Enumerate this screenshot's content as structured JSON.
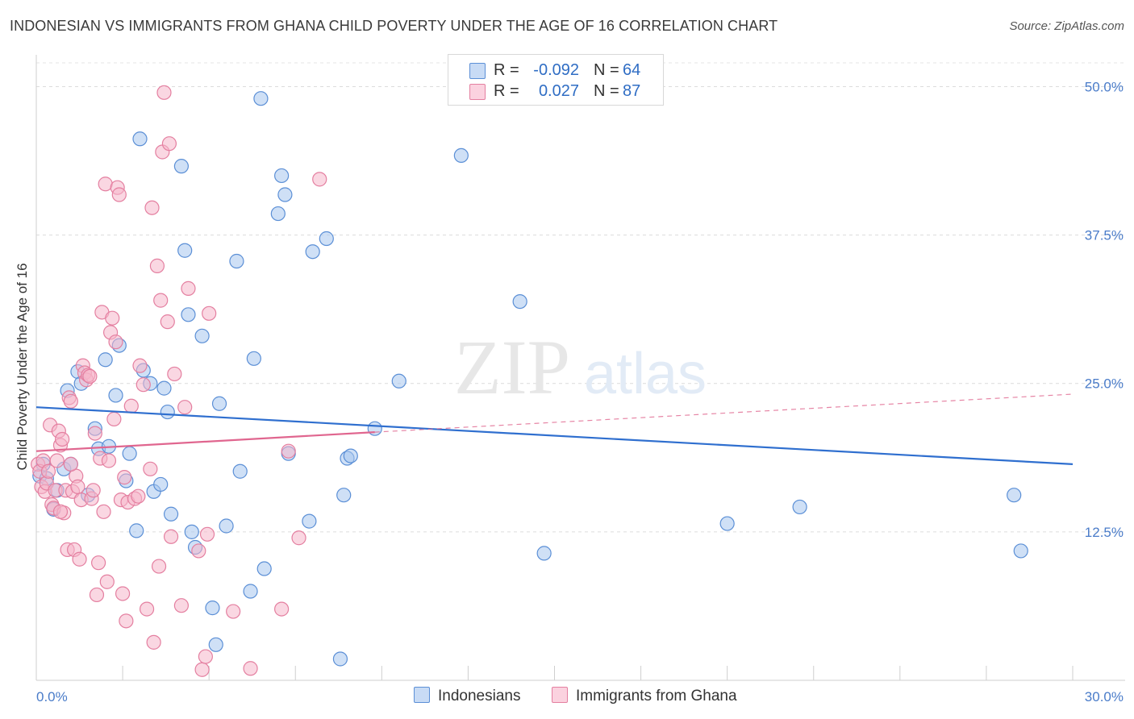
{
  "header": {
    "title": "INDONESIAN VS IMMIGRANTS FROM GHANA CHILD POVERTY UNDER THE AGE OF 16 CORRELATION CHART",
    "source": "Source: ZipAtlas.com"
  },
  "watermark": {
    "zip": "ZIP",
    "atlas": "atlas"
  },
  "legend": {
    "rows": [
      {
        "r_label": "R =",
        "r_value": "-0.092",
        "n_label": "N =",
        "n_value": "64",
        "color": "#a8c6ee"
      },
      {
        "r_label": "R =",
        "r_value": "0.027",
        "n_label": "N =",
        "n_value": "87",
        "color": "#f6b6ca"
      }
    ]
  },
  "bottom_legend": {
    "item1": "Indonesians",
    "item2": "Immigrants from Ghana"
  },
  "colors": {
    "blue_fill": "#a8c6ee",
    "blue_stroke": "#5b8fd6",
    "blue_line": "#2f6fcf",
    "pink_fill": "#f6b6ca",
    "pink_stroke": "#e47fa0",
    "pink_line": "#e0668f",
    "tick_label": "#4a7cc9"
  },
  "chart_data": {
    "type": "scatter",
    "title": "INDONESIAN VS IMMIGRANTS FROM GHANA CHILD POVERTY UNDER THE AGE OF 16 CORRELATION CHART",
    "xlabel": "",
    "ylabel": "Child Poverty Under the Age of 16",
    "xlim": [
      0,
      30
    ],
    "ylim": [
      0,
      52
    ],
    "x_tick_labels": [
      {
        "value": 0,
        "label": "0.0%"
      },
      {
        "value": 30,
        "label": "30.0%"
      }
    ],
    "y_ticks": [
      {
        "value": 12.5,
        "label": "12.5%"
      },
      {
        "value": 25.0,
        "label": "25.0%"
      },
      {
        "value": 37.5,
        "label": "37.5%"
      },
      {
        "value": 50.0,
        "label": "50.0%"
      }
    ],
    "grid": true,
    "legend_position": "top-center",
    "series": [
      {
        "name": "Indonesians",
        "r": -0.092,
        "n": 64,
        "trend": {
          "x": [
            0,
            30
          ],
          "y": [
            23.0,
            18.2
          ]
        },
        "points": [
          [
            0.1,
            17.2
          ],
          [
            0.3,
            17.0
          ],
          [
            0.5,
            14.4
          ],
          [
            0.6,
            16.0
          ],
          [
            0.8,
            17.8
          ],
          [
            0.9,
            24.4
          ],
          [
            1.0,
            18.2
          ],
          [
            1.2,
            26.0
          ],
          [
            1.3,
            25.0
          ],
          [
            1.5,
            15.6
          ],
          [
            1.7,
            21.2
          ],
          [
            1.8,
            19.5
          ],
          [
            2.0,
            27.0
          ],
          [
            2.1,
            19.7
          ],
          [
            2.3,
            24.0
          ],
          [
            2.4,
            28.2
          ],
          [
            2.6,
            16.8
          ],
          [
            2.7,
            19.1
          ],
          [
            2.9,
            12.6
          ],
          [
            3.0,
            45.6
          ],
          [
            3.1,
            26.1
          ],
          [
            3.3,
            25.0
          ],
          [
            3.4,
            15.9
          ],
          [
            3.6,
            16.5
          ],
          [
            3.7,
            24.6
          ],
          [
            3.8,
            22.6
          ],
          [
            3.9,
            14.0
          ],
          [
            4.2,
            43.3
          ],
          [
            4.3,
            36.2
          ],
          [
            4.4,
            30.8
          ],
          [
            4.5,
            12.5
          ],
          [
            4.6,
            11.2
          ],
          [
            4.8,
            29.0
          ],
          [
            5.1,
            6.1
          ],
          [
            5.2,
            3.0
          ],
          [
            5.3,
            23.3
          ],
          [
            5.5,
            13.0
          ],
          [
            5.8,
            35.3
          ],
          [
            5.9,
            17.6
          ],
          [
            6.2,
            7.5
          ],
          [
            6.3,
            27.1
          ],
          [
            6.6,
            9.4
          ],
          [
            6.5,
            49.0
          ],
          [
            7.0,
            39.3
          ],
          [
            7.1,
            42.5
          ],
          [
            7.2,
            40.9
          ],
          [
            7.3,
            19.1
          ],
          [
            8.0,
            36.1
          ],
          [
            8.4,
            37.2
          ],
          [
            7.9,
            13.4
          ],
          [
            8.8,
            1.8
          ],
          [
            8.9,
            15.6
          ],
          [
            9.0,
            18.7
          ],
          [
            9.1,
            18.9
          ],
          [
            9.8,
            21.2
          ],
          [
            10.5,
            25.2
          ],
          [
            12.3,
            44.2
          ],
          [
            14.0,
            31.9
          ],
          [
            14.7,
            10.7
          ],
          [
            20.0,
            13.2
          ],
          [
            22.1,
            14.6
          ],
          [
            28.3,
            15.6
          ],
          [
            28.5,
            10.9
          ],
          [
            0.2,
            18.2
          ]
        ]
      },
      {
        "name": "Immigrants from Ghana",
        "r": 0.027,
        "n": 87,
        "trend": {
          "x": [
            0,
            9.8
          ],
          "y": [
            19.3,
            20.9
          ]
        },
        "trend_extension": {
          "x": [
            9.8,
            30
          ],
          "y": [
            20.9,
            24.1
          ]
        },
        "points": [
          [
            0.05,
            18.2
          ],
          [
            0.1,
            17.6
          ],
          [
            0.15,
            16.3
          ],
          [
            0.2,
            18.5
          ],
          [
            0.25,
            15.9
          ],
          [
            0.3,
            16.6
          ],
          [
            0.35,
            17.6
          ],
          [
            0.4,
            21.5
          ],
          [
            0.45,
            14.8
          ],
          [
            0.5,
            14.5
          ],
          [
            0.55,
            16.0
          ],
          [
            0.6,
            18.5
          ],
          [
            0.65,
            21.0
          ],
          [
            0.7,
            19.8
          ],
          [
            0.75,
            20.3
          ],
          [
            0.8,
            14.1
          ],
          [
            0.85,
            16.0
          ],
          [
            0.9,
            11.0
          ],
          [
            0.95,
            23.8
          ],
          [
            1.0,
            23.5
          ],
          [
            1.05,
            15.9
          ],
          [
            1.1,
            11.0
          ],
          [
            1.15,
            17.2
          ],
          [
            1.2,
            16.3
          ],
          [
            1.25,
            10.2
          ],
          [
            1.3,
            15.2
          ],
          [
            1.35,
            26.5
          ],
          [
            1.4,
            25.9
          ],
          [
            1.45,
            25.3
          ],
          [
            1.5,
            25.7
          ],
          [
            1.55,
            25.6
          ],
          [
            1.6,
            15.3
          ],
          [
            1.65,
            16.0
          ],
          [
            1.7,
            20.8
          ],
          [
            1.75,
            7.2
          ],
          [
            1.8,
            9.9
          ],
          [
            1.85,
            18.7
          ],
          [
            1.9,
            31.0
          ],
          [
            1.95,
            14.2
          ],
          [
            2.0,
            41.8
          ],
          [
            2.05,
            8.3
          ],
          [
            2.1,
            18.5
          ],
          [
            2.15,
            29.3
          ],
          [
            2.2,
            30.5
          ],
          [
            2.25,
            22.0
          ],
          [
            2.3,
            28.5
          ],
          [
            2.35,
            41.5
          ],
          [
            2.4,
            40.9
          ],
          [
            2.45,
            15.2
          ],
          [
            2.5,
            7.3
          ],
          [
            2.55,
            17.1
          ],
          [
            2.6,
            5.0
          ],
          [
            2.65,
            15.0
          ],
          [
            2.75,
            23.1
          ],
          [
            2.85,
            15.3
          ],
          [
            2.95,
            15.5
          ],
          [
            3.0,
            26.5
          ],
          [
            3.1,
            24.9
          ],
          [
            3.2,
            6.0
          ],
          [
            3.3,
            17.8
          ],
          [
            3.35,
            39.8
          ],
          [
            3.4,
            3.2
          ],
          [
            3.5,
            34.9
          ],
          [
            3.55,
            9.6
          ],
          [
            3.6,
            32.0
          ],
          [
            3.65,
            44.5
          ],
          [
            3.7,
            49.5
          ],
          [
            3.8,
            30.2
          ],
          [
            3.85,
            45.2
          ],
          [
            3.9,
            12.1
          ],
          [
            4.0,
            25.8
          ],
          [
            4.2,
            6.3
          ],
          [
            4.3,
            23.0
          ],
          [
            4.4,
            33.0
          ],
          [
            4.7,
            10.9
          ],
          [
            4.8,
            0.9
          ],
          [
            4.9,
            2.0
          ],
          [
            4.95,
            12.3
          ],
          [
            5.0,
            30.9
          ],
          [
            5.7,
            5.8
          ],
          [
            6.2,
            1.0
          ],
          [
            7.1,
            6.0
          ],
          [
            7.3,
            19.3
          ],
          [
            7.6,
            12.0
          ],
          [
            8.2,
            42.2
          ],
          [
            0.7,
            14.2
          ],
          [
            1.0,
            18.2
          ]
        ]
      }
    ]
  }
}
